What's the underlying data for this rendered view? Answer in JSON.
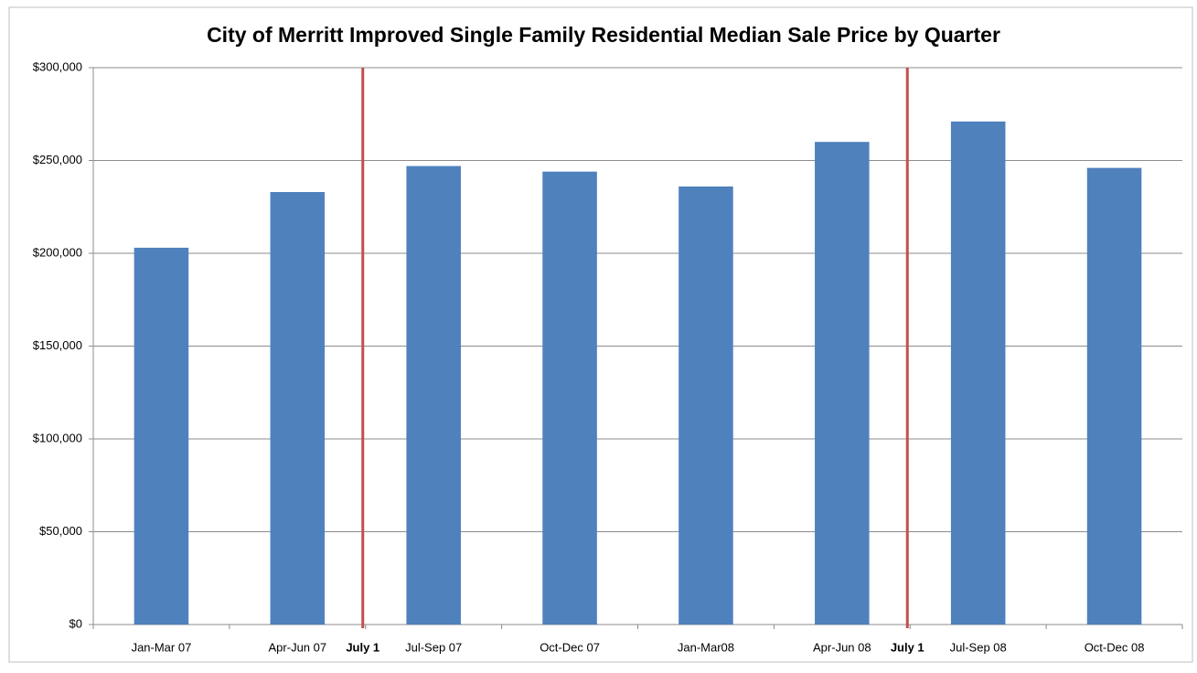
{
  "chart_data": {
    "type": "bar",
    "title": "City of Merritt Improved Single Family Residential Median Sale Price by Quarter",
    "categories": [
      "Jan-Mar 07",
      "Apr-Jun 07",
      "Jul-Sep 07",
      "Oct-Dec 07",
      "Jan-Mar08",
      "Apr-Jun 08",
      "Jul-Sep 08",
      "Oct-Dec 08"
    ],
    "values": [
      203000,
      233000,
      247000,
      244000,
      236000,
      260000,
      271000,
      246000
    ],
    "color": "#4f81bd",
    "ylim": [
      0,
      300000
    ],
    "yticks": [
      {
        "value": 0,
        "label": "$0"
      },
      {
        "value": 50000,
        "label": "$50,000"
      },
      {
        "value": 100000,
        "label": "$100,000"
      },
      {
        "value": 150000,
        "label": "$150,000"
      },
      {
        "value": 200000,
        "label": "$200,000"
      },
      {
        "value": 250000,
        "label": "$250,000"
      },
      {
        "value": 300000,
        "label": "$300,000"
      }
    ],
    "grid": true,
    "annotations": [
      {
        "text": "July 1",
        "before": "Jul-Sep 07",
        "color": "#c0504d"
      },
      {
        "text": "July 1",
        "before": "Jul-Sep 08",
        "color": "#c0504d"
      }
    ]
  }
}
